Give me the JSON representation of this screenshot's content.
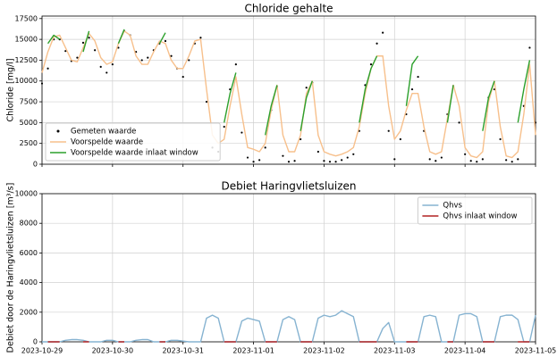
{
  "chart_data": [
    {
      "type": "line",
      "title": "Chloride gehalte",
      "y_label": "Chloride [mg/l]",
      "xlim": [
        "2023-10-29",
        "2023-11-05"
      ],
      "ylim": [
        0,
        17800
      ],
      "yticks": [
        0,
        2500,
        5000,
        7500,
        10000,
        12500,
        15000,
        17500
      ],
      "grid": true,
      "legend": "lower left",
      "series": [
        {
          "name": "Gemeten waarde",
          "color": "#000000",
          "style": "dots",
          "values": [
            9700,
            11500,
            15000,
            15000,
            13600,
            12400,
            12800,
            14600,
            15200,
            13700,
            11700,
            11000,
            12000,
            14000,
            16000,
            15500,
            13500,
            12500,
            12800,
            13700,
            14500,
            14800,
            13000,
            11500,
            10500,
            12500,
            14500,
            15200,
            7500,
            2000,
            1500,
            4500,
            9000,
            12000,
            3800,
            800,
            300,
            500,
            2000,
            6500,
            9300,
            1000,
            300,
            400,
            3000,
            9200,
            9800,
            1500,
            400,
            300,
            300,
            500,
            800,
            1200,
            4000,
            9500,
            12000,
            14500,
            15800,
            4000,
            600,
            3000,
            6000,
            9000,
            10500,
            4000,
            600,
            400,
            800,
            6000,
            9400,
            5000,
            1200,
            400,
            300,
            600,
            8000,
            9000,
            3000,
            500,
            300,
            600,
            7000,
            14000,
            5000
          ]
        },
        {
          "name": "Voorspelde waarde",
          "color": "#f7c08c",
          "style": "line",
          "values": [
            11000,
            13500,
            15300,
            15500,
            14000,
            12500,
            12300,
            14000,
            15700,
            14800,
            12800,
            12000,
            12300,
            14500,
            16000,
            15500,
            13000,
            12000,
            12000,
            13500,
            14800,
            14500,
            12500,
            11500,
            11500,
            13000,
            14800,
            15000,
            9000,
            3500,
            2500,
            3000,
            7000,
            10500,
            6000,
            2000,
            1800,
            1500,
            2500,
            6500,
            9500,
            3500,
            1500,
            1500,
            3500,
            8500,
            10000,
            3500,
            1500,
            1200,
            1000,
            1200,
            1500,
            2000,
            4500,
            8500,
            11500,
            13000,
            13000,
            7000,
            3000,
            4000,
            6500,
            8500,
            8500,
            4500,
            1500,
            1200,
            1500,
            5500,
            9500,
            7000,
            2000,
            1000,
            800,
            1500,
            7500,
            10000,
            4500,
            1000,
            800,
            1500,
            6000,
            12000,
            3500
          ]
        },
        {
          "name": "Voorspelde waarde inlaat window",
          "color": "#2ca02c",
          "style": "line",
          "values": [
            null,
            14500,
            15500,
            15000,
            null,
            null,
            null,
            13500,
            16000,
            null,
            null,
            null,
            null,
            14500,
            16200,
            null,
            null,
            null,
            null,
            null,
            14500,
            15800,
            null,
            null,
            null,
            null,
            null,
            null,
            null,
            null,
            null,
            5000,
            8500,
            11000,
            null,
            null,
            null,
            null,
            3500,
            7000,
            9500,
            null,
            null,
            null,
            4000,
            8000,
            10000,
            null,
            null,
            null,
            null,
            null,
            null,
            null,
            5000,
            9000,
            11500,
            13000,
            null,
            null,
            null,
            null,
            7000,
            12000,
            13000,
            null,
            null,
            null,
            null,
            5000,
            9500,
            null,
            null,
            null,
            null,
            4000,
            8000,
            10000,
            null,
            null,
            null,
            5000,
            9000,
            12500,
            null
          ]
        }
      ]
    },
    {
      "type": "line",
      "title": "Debiet Haringvlietsluizen",
      "y_label": "Debiet door de Haringvlietsluizen [m³/s]",
      "xlim": [
        "2023-10-29",
        "2023-11-05"
      ],
      "ylim": [
        0,
        10000
      ],
      "xticks": [
        "2023-10-29",
        "2023-10-30",
        "2023-10-31",
        "2023-11-01",
        "2023-11-02",
        "2023-11-03",
        "2023-11-04",
        "2023-11-05"
      ],
      "yticks": [
        0,
        2000,
        4000,
        6000,
        8000,
        10000
      ],
      "grid": true,
      "legend": "upper right",
      "series": [
        {
          "name": "Qhvs",
          "color": "#86b3d1",
          "style": "line",
          "values": [
            0,
            0,
            0,
            0,
            100,
            150,
            150,
            100,
            0,
            0,
            0,
            100,
            100,
            0,
            0,
            0,
            100,
            150,
            150,
            0,
            0,
            0,
            100,
            100,
            50,
            0,
            0,
            0,
            1600,
            1800,
            1600,
            0,
            0,
            0,
            1400,
            1600,
            1500,
            1400,
            0,
            0,
            0,
            1500,
            1700,
            1500,
            0,
            0,
            0,
            1600,
            1800,
            1700,
            1800,
            2100,
            1900,
            1700,
            0,
            0,
            0,
            0,
            900,
            1300,
            0,
            0,
            0,
            0,
            0,
            1700,
            1800,
            1700,
            0,
            0,
            0,
            1800,
            1900,
            1900,
            1700,
            0,
            0,
            0,
            1700,
            1800,
            1800,
            1500,
            0,
            0,
            1800
          ]
        },
        {
          "name": "Qhvs inlaat window",
          "color": "#b22222",
          "style": "line",
          "values": [
            null,
            0,
            0,
            0,
            null,
            null,
            null,
            0,
            0,
            null,
            null,
            null,
            null,
            0,
            0,
            null,
            null,
            null,
            null,
            null,
            0,
            0,
            null,
            null,
            null,
            null,
            null,
            null,
            null,
            null,
            null,
            0,
            0,
            0,
            null,
            null,
            null,
            null,
            0,
            0,
            0,
            null,
            null,
            null,
            0,
            0,
            0,
            null,
            null,
            null,
            null,
            null,
            null,
            null,
            0,
            0,
            0,
            0,
            null,
            null,
            null,
            null,
            0,
            0,
            0,
            null,
            null,
            null,
            null,
            0,
            0,
            null,
            null,
            null,
            null,
            0,
            0,
            0,
            null,
            null,
            null,
            0,
            0,
            0,
            null
          ]
        }
      ]
    }
  ]
}
